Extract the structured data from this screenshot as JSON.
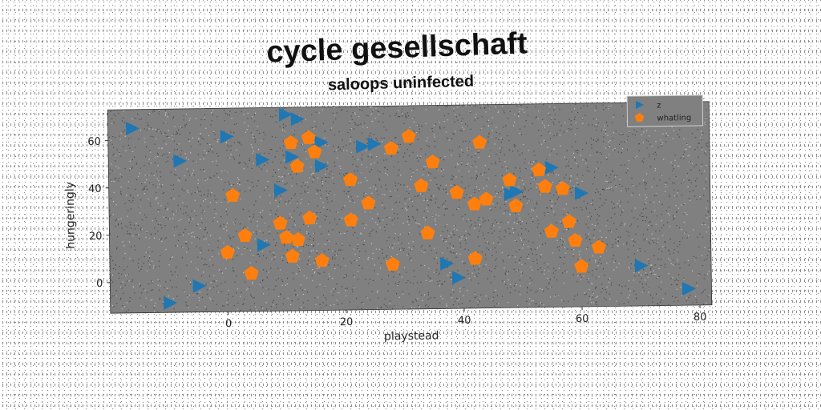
{
  "chart_data": {
    "type": "scatter",
    "title": "cycle gesellschaft",
    "subtitle": "saloops uninfected",
    "xlabel": "playstead",
    "ylabel": "hungeringly",
    "xlim": [
      -20,
      82
    ],
    "ylim": [
      -13,
      73
    ],
    "xticks": [
      "0",
      "20",
      "40",
      "60",
      "80"
    ],
    "yticks": [
      "0",
      "20",
      "40",
      "60"
    ],
    "xtick_values": [
      0,
      20,
      40,
      60,
      80
    ],
    "ytick_values": [
      0,
      20,
      40,
      60
    ],
    "grid": false,
    "legend_position": "top-right",
    "plot_background": "#808080",
    "series": [
      {
        "name": "z",
        "marker": "triangle-right",
        "color": "#1f77b4",
        "points": [
          [
            -16,
            65
          ],
          [
            -8,
            51
          ],
          [
            -5,
            -2
          ],
          [
            -10,
            -9
          ],
          [
            0,
            61
          ],
          [
            6,
            15
          ],
          [
            6,
            51
          ],
          [
            9,
            38
          ],
          [
            10,
            70
          ],
          [
            11,
            52
          ],
          [
            12,
            68
          ],
          [
            16,
            58
          ],
          [
            16,
            48
          ],
          [
            23,
            56
          ],
          [
            25,
            57
          ],
          [
            37,
            6
          ],
          [
            39,
            0
          ],
          [
            48,
            35
          ],
          [
            49,
            36
          ],
          [
            55,
            46
          ],
          [
            60,
            35
          ],
          [
            70,
            4
          ],
          [
            78,
            -6
          ]
        ]
      },
      {
        "name": "whatling",
        "marker": "pentagon",
        "color": "#ff7f0e",
        "points": [
          [
            1,
            36
          ],
          [
            0,
            12
          ],
          [
            3,
            19
          ],
          [
            4,
            3
          ],
          [
            9,
            24
          ],
          [
            10,
            18
          ],
          [
            11,
            10
          ],
          [
            12,
            17
          ],
          [
            11,
            58
          ],
          [
            12,
            48
          ],
          [
            14,
            26
          ],
          [
            14,
            60
          ],
          [
            15,
            54
          ],
          [
            16,
            8
          ],
          [
            21,
            25
          ],
          [
            21,
            42
          ],
          [
            24,
            32
          ],
          [
            28,
            6
          ],
          [
            28,
            55
          ],
          [
            31,
            60
          ],
          [
            33,
            39
          ],
          [
            34,
            19
          ],
          [
            35,
            49
          ],
          [
            39,
            36
          ],
          [
            42,
            31
          ],
          [
            42,
            8
          ],
          [
            43,
            57
          ],
          [
            44,
            33
          ],
          [
            48,
            41
          ],
          [
            49,
            30
          ],
          [
            53,
            45
          ],
          [
            54,
            38
          ],
          [
            55,
            19
          ],
          [
            57,
            37
          ],
          [
            58,
            23
          ],
          [
            59,
            15
          ],
          [
            60,
            4
          ],
          [
            63,
            12
          ]
        ]
      }
    ]
  }
}
